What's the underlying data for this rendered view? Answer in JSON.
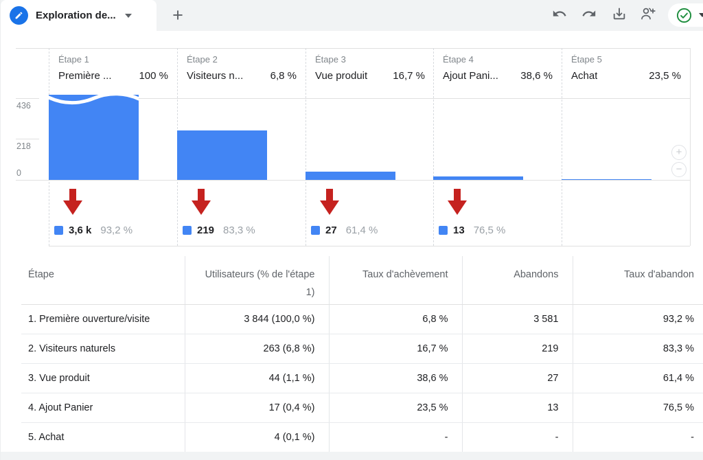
{
  "colors": {
    "bar_blue": "#4285f4",
    "arrow_red": "#c5221f",
    "tab_circle_blue": "#1a73e8",
    "status_green": "#1e8e3e",
    "icon_gray": "#5f6368"
  },
  "tabbar": {
    "active_tab_label": "Exploration de...",
    "new_tab_glyph": "+",
    "toolbar_icons": [
      "undo-icon",
      "redo-icon",
      "download-icon",
      "share-add-user-icon",
      "status-check-icon",
      "dropdown-caret-icon"
    ]
  },
  "icons": {
    "zoom_in_glyph": "+",
    "zoom_out_glyph": "−"
  },
  "chart_data": {
    "type": "funnel",
    "categories": [
      "Étape 1",
      "Étape 2",
      "Étape 3",
      "Étape 4",
      "Étape 5"
    ],
    "step_names": [
      "Première ...",
      "Visiteurs n...",
      "Vue produit",
      "Ajout Pani...",
      "Achat"
    ],
    "completion_rates": [
      "100 %",
      "6,8 %",
      "16,7 %",
      "38,6 %",
      "23,5 %"
    ],
    "values": [
      3844,
      263,
      44,
      17,
      4
    ],
    "abandonments": [
      {
        "label": "3,6 k",
        "pct": "93,2 %"
      },
      {
        "label": "219",
        "pct": "83,3 %"
      },
      {
        "label": "27",
        "pct": "61,4 %"
      },
      {
        "label": "13",
        "pct": "76,5 %"
      },
      null
    ],
    "y_ticks": [
      "436",
      "218",
      "0"
    ],
    "ylim": [
      0,
      436
    ],
    "bar_color": "#4285f4",
    "clipped_first_bar": true,
    "legend_position": "below-bars",
    "grid": "top-gridline-only"
  },
  "table": {
    "columns": [
      "Étape",
      "Utilisateurs (% de l'étape 1)",
      "Taux d'achèvement",
      "Abandons",
      "Taux d'abandon"
    ],
    "rows": [
      [
        "1. Première ouverture/visite",
        "3 844 (100,0 %)",
        "6,8 %",
        "3 581",
        "93,2 %"
      ],
      [
        "2. Visiteurs naturels",
        "263 (6,8 %)",
        "16,7 %",
        "219",
        "83,3 %"
      ],
      [
        "3. Vue produit",
        "44 (1,1 %)",
        "38,6 %",
        "27",
        "61,4 %"
      ],
      [
        "4. Ajout Panier",
        "17 (0,4 %)",
        "23,5 %",
        "13",
        "76,5 %"
      ],
      [
        "5. Achat",
        "4 (0,1 %)",
        "-",
        "-",
        "-"
      ]
    ]
  }
}
